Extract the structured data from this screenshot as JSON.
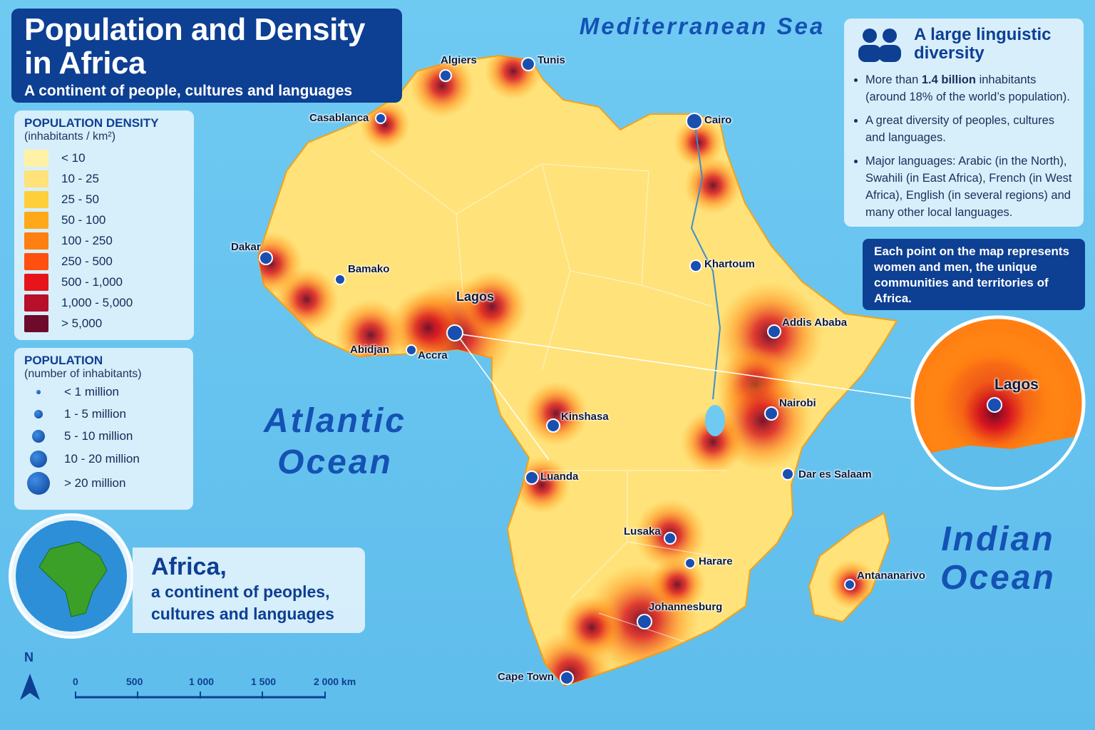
{
  "header": {
    "title": "Population and Density in Africa",
    "subtitle": "A continent of people, cultures and languages"
  },
  "seas": {
    "mediterranean": "Mediterranean Sea",
    "atlantic": "Atlantic Ocean",
    "indian": "Indian Ocean"
  },
  "density_legend": {
    "title": "POPULATION DENSITY",
    "unit": "(inhabitants / km²)",
    "classes": [
      {
        "label": "< 10",
        "color": "#fff1a6"
      },
      {
        "label": "10 - 25",
        "color": "#ffe27a"
      },
      {
        "label": "25 - 50",
        "color": "#ffcf3a"
      },
      {
        "label": "50 - 100",
        "color": "#ffa91a"
      },
      {
        "label": "100 - 250",
        "color": "#ff7f12"
      },
      {
        "label": "250 - 500",
        "color": "#ff5010"
      },
      {
        "label": "500 - 1,000",
        "color": "#e8141c"
      },
      {
        "label": "1,000 - 5,000",
        "color": "#b80f2a"
      },
      {
        "label": "> 5,000",
        "color": "#6e0a2a"
      }
    ]
  },
  "population_legend": {
    "title": "POPULATION",
    "unit": "(number of inhabitants)",
    "classes": [
      "< 1 million",
      "1 - 5 million",
      "5 - 10 million",
      "10 - 20 million",
      "> 20 million"
    ]
  },
  "cities": [
    "Algiers",
    "Tunis",
    "Casablanca",
    "Cairo",
    "Dakar",
    "Bamako",
    "Lagos",
    "Abidjan",
    "Accra",
    "Khartoum",
    "Addis Ababa",
    "Nairobi",
    "Kinshasa",
    "Luanda",
    "Dar es Salaam",
    "Lusaka",
    "Harare",
    "Antananarivo",
    "Johannesburg",
    "Cape Town"
  ],
  "info_box": {
    "title": "A large linguistic diversity",
    "bullet_1": {
      "before": "More than ",
      "bold": "1.4 billion",
      "after": " inhabitants (around 18% of the world’s population)."
    },
    "bullet_2": "A great diversity of peoples, cultures and languages.",
    "bullet_3": "Major languages: Arabic (in the North), Swahili (in East Africa), French (in West Africa), English (in several regions) and many other local languages."
  },
  "note": "Each point on the map represents women and men, the unique communities and territories of Africa.",
  "inset": {
    "label": "Lagos"
  },
  "globe_caption": {
    "title": "Africa,",
    "text": "a continent of peoples, cultures and languages"
  },
  "north": "N",
  "scale_bar": [
    "0",
    "500",
    "1 000",
    "1 500",
    "2 000 km"
  ]
}
